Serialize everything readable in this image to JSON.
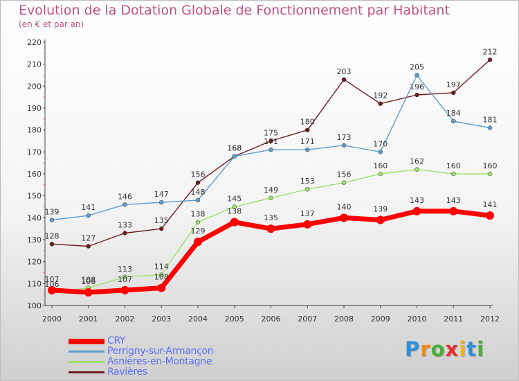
{
  "title": "Evolution de la Dotation Globale de Fonctionnement par Habitant",
  "subtitle": "(en € et par an)",
  "brand": {
    "letters": [
      "P",
      "r",
      "o",
      "x",
      "i",
      "t",
      "i"
    ],
    "colors": [
      "#2e8fd8",
      "#f08a1c",
      "#4cae3c",
      "#e8302c",
      "#f0b21c",
      "#2e8fd8",
      "#4cae3c"
    ]
  },
  "chart_data": {
    "type": "line",
    "x": [
      2000,
      2001,
      2002,
      2003,
      2004,
      2005,
      2006,
      2007,
      2008,
      2009,
      2010,
      2011,
      2012
    ],
    "ylim": [
      100,
      220
    ],
    "yticks": [
      100,
      110,
      120,
      130,
      140,
      150,
      160,
      170,
      180,
      190,
      200,
      210,
      220
    ],
    "grid": false,
    "legend_position": "bottom-left",
    "series": [
      {
        "name": "Ravières",
        "color": "#6b1c22",
        "values": [
          128,
          127,
          133,
          135,
          156,
          168,
          175,
          180,
          203,
          192,
          196,
          197,
          212
        ]
      },
      {
        "name": "Perrigny-sur-Armançon",
        "color": "#5f9dd0",
        "values": [
          139,
          141,
          146,
          147,
          148,
          168,
          171,
          171,
          173,
          170,
          205,
          184,
          181
        ]
      },
      {
        "name": "Asnières-en-Montagne",
        "color": "#9ee06a",
        "values": [
          106,
          108,
          113,
          114,
          138,
          145,
          149,
          153,
          156,
          160,
          162,
          160,
          160
        ]
      },
      {
        "name": "CRY",
        "color": "#ff0000",
        "values": [
          107,
          106,
          107,
          108,
          129,
          138,
          135,
          137,
          140,
          139,
          143,
          143,
          141
        ]
      }
    ],
    "legend_order": [
      "CRY",
      "Perrigny-sur-Armançon",
      "Asnières-en-Montagne",
      "Ravières"
    ]
  }
}
